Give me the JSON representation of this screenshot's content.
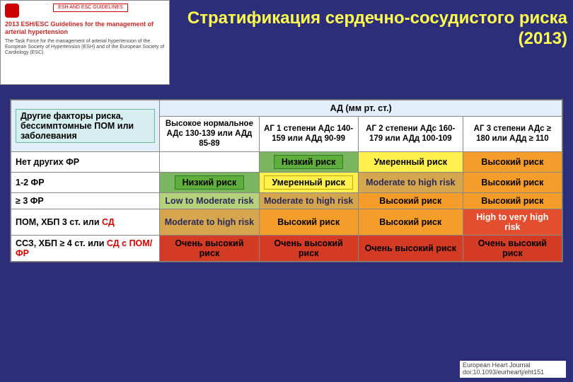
{
  "corner": {
    "badge": "ESH AND ESC GUIDELINES",
    "title": "2013 ESH/ESC Guidelines for the management of arterial hypertension",
    "sub": "The Task Force for the management of arterial hypertension of the European Society of Hypertension (ESH) and of the European Society of Cardiology (ESC)"
  },
  "title_line1": "Стратификация сердечно-сосудистого риска",
  "title_line2": "(2013)",
  "table": {
    "factors_header": "Другие факторы риска, бессимптомные ПОМ или заболевания",
    "bp_header": "АД (мм рт. ст.)",
    "cols": [
      "Высокое нормальное АДс 130-139 или АДд 85-89",
      "АГ 1 степени АДс 140-159 или АДд 90-99",
      "АГ 2 степени АДс 160-179 или АДд 100-109",
      "АГ 3 степени АДс ≥ 180 или АДд ≥ 110"
    ],
    "rows": [
      {
        "label": "Нет других ФР",
        "cells": [
          {
            "text": "",
            "cls": ""
          },
          {
            "text": "Низкий риск",
            "cls": "cell-low",
            "box": "cell-low-box"
          },
          {
            "text": "Умеренный риск",
            "cls": "cell-mod-y"
          },
          {
            "text": "Высокий риск",
            "cls": "cell-high-o"
          }
        ]
      },
      {
        "label": "1-2 ФР",
        "cells": [
          {
            "text": "Низкий риск",
            "cls": "cell-low",
            "box": "cell-low-box"
          },
          {
            "text": "Умеренный риск",
            "cls": "cell-mod-y",
            "box": "cell-mod-y-box"
          },
          {
            "text": "Moderate to high risk",
            "cls": "cell-modhi"
          },
          {
            "text": "Высокий риск",
            "cls": "cell-high-o"
          }
        ]
      },
      {
        "label": "≥ 3 ФР",
        "cells": [
          {
            "text": "Low to Moderate risk",
            "cls": "cell-lowmod"
          },
          {
            "text": "Moderate to high risk",
            "cls": "cell-modhi"
          },
          {
            "text": "Высокий риск",
            "cls": "cell-high-o"
          },
          {
            "text": "Высокий риск",
            "cls": "cell-high-o"
          }
        ]
      },
      {
        "label_html": "ПОМ, ХБП 3 ст. или <span class='red-text'>СД</span>",
        "cells": [
          {
            "text": "Moderate to high risk",
            "cls": "cell-modhi"
          },
          {
            "text": "Высокий риск",
            "cls": "cell-high-o"
          },
          {
            "text": "Высокий риск",
            "cls": "cell-high-o"
          },
          {
            "text": "High to very high risk",
            "cls": "cell-hi-vhi"
          }
        ]
      },
      {
        "label_html": "ССЗ, ХБП ≥ 4 ст. или <span class='red-text'>СД с ПОМ/ФР</span>",
        "cells": [
          {
            "text": "Очень высокий риск",
            "cls": "cell-vhi"
          },
          {
            "text": "Очень высокий риск",
            "cls": "cell-vhi"
          },
          {
            "text": "Очень высокий риск",
            "cls": "cell-vhi"
          },
          {
            "text": "Очень высокий риск",
            "cls": "cell-vhi"
          }
        ]
      }
    ]
  },
  "footer": {
    "line1": "European Heart Journal",
    "line2": "doi:10.1093/eurheartj/eht151"
  }
}
